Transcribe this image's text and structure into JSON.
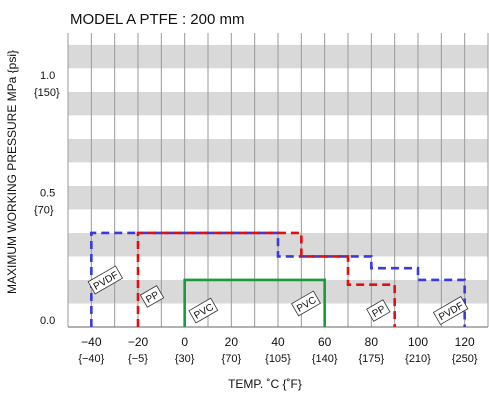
{
  "chart_data": {
    "type": "line",
    "title": "MODEL A   PTFE : 200 mm",
    "xlabel": "TEMP. ˚C {˚F}",
    "ylabel": "MAXIMUM WORKING PRESSURE   MPa {psi}",
    "xlim": [
      -50,
      130
    ],
    "ylim": [
      0,
      1.25
    ],
    "grid": true,
    "x_ticks": [
      {
        "value": -40,
        "label": "−40",
        "sub": "{−40}"
      },
      {
        "value": -20,
        "label": "−20",
        "sub": "{−5}"
      },
      {
        "value": 0,
        "label": "0",
        "sub": "{30}"
      },
      {
        "value": 20,
        "label": "20",
        "sub": "{70}"
      },
      {
        "value": 40,
        "label": "40",
        "sub": "{105}"
      },
      {
        "value": 60,
        "label": "60",
        "sub": "{140}"
      },
      {
        "value": 80,
        "label": "80",
        "sub": "{175}"
      },
      {
        "value": 100,
        "label": "100",
        "sub": "{210}"
      },
      {
        "value": 120,
        "label": "120",
        "sub": "{250}"
      }
    ],
    "y_ticks": [
      {
        "value": 1.0,
        "label": "1.0",
        "sub": "{150}"
      },
      {
        "value": 0.5,
        "label": "0.5",
        "sub": "{70}"
      },
      {
        "value": 0.0,
        "label": "0.0",
        "sub": ""
      }
    ],
    "series": [
      {
        "name": "PVDF",
        "color": "#3a3adf",
        "dash": true,
        "x": [
          -40,
          -40,
          40,
          40,
          80,
          80,
          100,
          100,
          120,
          120
        ],
        "y": [
          0,
          0.4,
          0.4,
          0.3,
          0.3,
          0.25,
          0.25,
          0.2,
          0.2,
          0
        ],
        "labels": [
          {
            "text": "PVDF",
            "x": -34,
            "y": 0.2
          },
          {
            "text": "PVDF",
            "x": 114,
            "y": 0.07
          }
        ]
      },
      {
        "name": "PP",
        "color": "#e01010",
        "dash": true,
        "x": [
          -20,
          -20,
          50,
          50,
          70,
          70,
          90,
          90
        ],
        "y": [
          0,
          0.4,
          0.4,
          0.3,
          0.3,
          0.18,
          0.18,
          0
        ],
        "labels": [
          {
            "text": "PP",
            "x": -14,
            "y": 0.13
          },
          {
            "text": "PP",
            "x": 83,
            "y": 0.07
          }
        ]
      },
      {
        "name": "PVC",
        "color": "#1a9a3a",
        "dash": false,
        "x": [
          0,
          0,
          60,
          60
        ],
        "y": [
          0,
          0.2,
          0.2,
          0
        ],
        "labels": [
          {
            "text": "PVC",
            "x": 8,
            "y": 0.07
          },
          {
            "text": "PVC",
            "x": 52,
            "y": 0.1
          }
        ]
      }
    ]
  }
}
